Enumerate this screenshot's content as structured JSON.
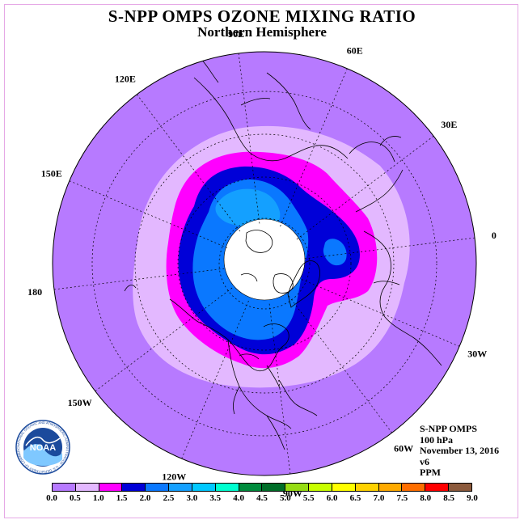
{
  "title": "S-NPP OMPS OZONE MIXING RATIO",
  "subtitle": "Northern Hemisphere",
  "longitude_labels": [
    {
      "text": "90E",
      "deg": 90
    },
    {
      "text": "60E",
      "deg": 60
    },
    {
      "text": "30E",
      "deg": 30
    },
    {
      "text": "0",
      "deg": 0
    },
    {
      "text": "30W",
      "deg": -30
    },
    {
      "text": "60W",
      "deg": -60
    },
    {
      "text": "90W",
      "deg": -90
    },
    {
      "text": "120W",
      "deg": -120
    },
    {
      "text": "150W",
      "deg": -150
    },
    {
      "text": "180",
      "deg": 180
    },
    {
      "text": "150E",
      "deg": 150
    },
    {
      "text": "120E",
      "deg": 120
    }
  ],
  "info": {
    "instrument": "S-NPP OMPS",
    "level": "100 hPa",
    "date": "November 13, 2016",
    "version": "v6",
    "units": "PPM"
  },
  "logo": {
    "text": "NOAA",
    "ring_text": "NATIONAL OCEANIC AND ATMOSPHERIC ADMINISTRATION · U.S. DEPARTMENT OF COMMERCE"
  },
  "colorbar": {
    "ticks": [
      "0.0",
      "0.5",
      "1.0",
      "1.5",
      "2.0",
      "2.5",
      "3.0",
      "3.5",
      "4.0",
      "4.5",
      "5.0",
      "5.5",
      "6.0",
      "6.5",
      "7.0",
      "7.5",
      "8.0",
      "8.5",
      "9.0"
    ],
    "colors": [
      "#b77aff",
      "#e3b8ff",
      "#ff00ff",
      "#0000d8",
      "#0a78ff",
      "#14a0ff",
      "#00c8ff",
      "#00ffd0",
      "#008c3c",
      "#006e28",
      "#96dc14",
      "#c8ff00",
      "#ffff00",
      "#ffd200",
      "#ffaa00",
      "#ff6e00",
      "#ff0000",
      "#8c5a3c"
    ]
  },
  "map_colors": {
    "background": "#b77aff",
    "level_0_5": "#e3b8ff",
    "level_1_0": "#ff00ff",
    "level_1_5": "#0000d8",
    "level_2_0": "#0a78ff",
    "level_2_5": "#14a0ff",
    "missing": "#ffffff"
  }
}
